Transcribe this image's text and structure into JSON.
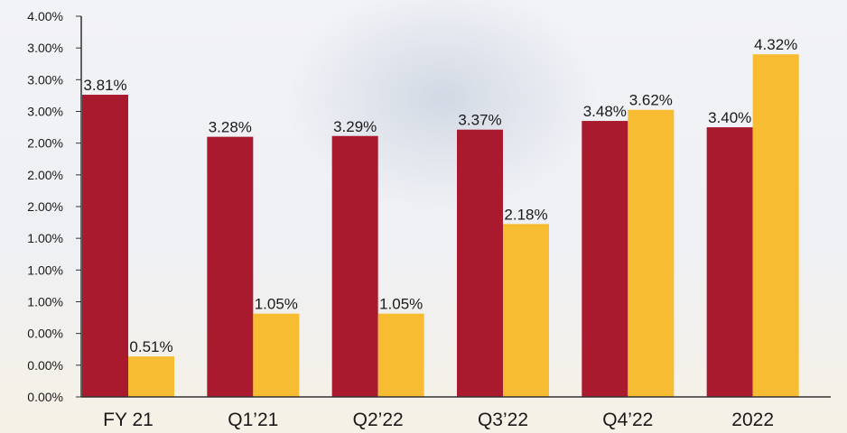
{
  "colors": {
    "series_a": "#A91A2E",
    "series_b": "#F7BC31",
    "axis": "#333333",
    "text": "#1a1a1a"
  },
  "chart_data": {
    "type": "bar",
    "categories": [
      "FY 21",
      "Q1’21",
      "Q2’22",
      "Q3’22",
      "Q4’22",
      "2022"
    ],
    "series": [
      {
        "values": [
          3.81,
          3.28,
          3.29,
          3.37,
          3.48,
          3.4
        ],
        "labels": [
          "3.81%",
          "3.28%",
          "3.29%",
          "3.37%",
          "3.48%",
          "3.40%"
        ]
      },
      {
        "values": [
          0.51,
          1.05,
          1.05,
          2.18,
          3.62,
          4.32
        ],
        "labels": [
          "0.51%",
          "1.05%",
          "1.05%",
          "2.18%",
          "3.62%",
          "4.32%"
        ]
      }
    ],
    "ytick_labels": [
      "0.00%",
      "0.00%",
      "0.00%",
      "1.00%",
      "1.00%",
      "1.00%",
      "2.00%",
      "2.00%",
      "2.00%",
      "3.00%",
      "3.00%",
      "3.00%",
      "4.00%"
    ],
    "ylim": [
      0,
      4.8
    ],
    "grid": false,
    "legend": "none",
    "title": "",
    "xlabel": "",
    "ylabel": ""
  }
}
